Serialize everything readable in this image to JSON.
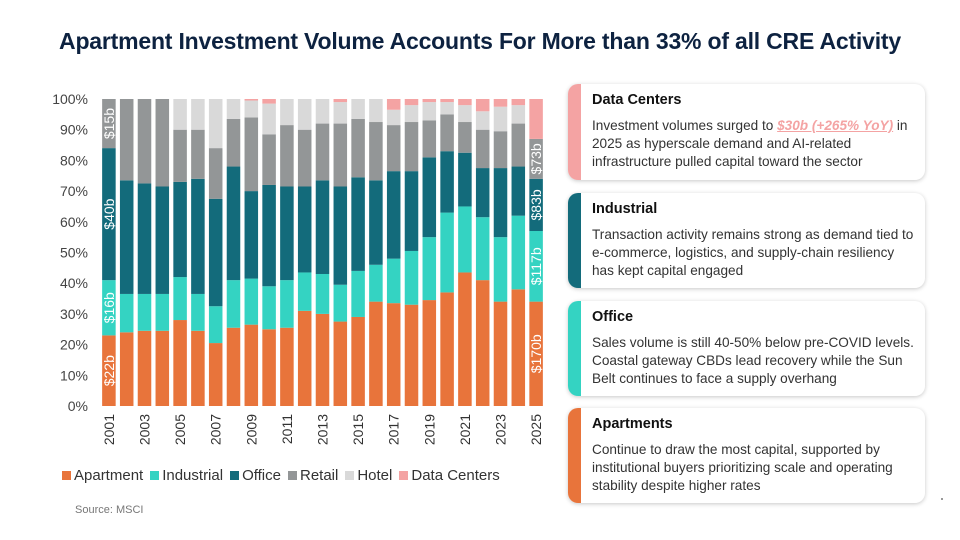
{
  "title": "Apartment Investment Volume Accounts For More than 33% of all CRE Activity",
  "source": "Source: MSCI",
  "colors": {
    "apartment": "#e8743b",
    "industrial": "#34d3c2",
    "office": "#136b7b",
    "retail": "#939697",
    "hotel": "#d9d9d9",
    "data_centers": "#f4a3a3"
  },
  "legend": [
    {
      "name": "Apartment",
      "color": "#e8743b"
    },
    {
      "name": "Industrial",
      "color": "#34d3c2"
    },
    {
      "name": "Office",
      "color": "#136b7b"
    },
    {
      "name": "Retail",
      "color": "#939697"
    },
    {
      "name": "Hotel",
      "color": "#d9d9d9"
    },
    {
      "name": "Data Centers",
      "color": "#f4a3a3"
    }
  ],
  "chart_data": {
    "type": "bar",
    "stacked": true,
    "percent": true,
    "categories": [
      "2001",
      "2002",
      "2003",
      "2004",
      "2005",
      "2006",
      "2007",
      "2008",
      "2009",
      "2010",
      "2011",
      "2012",
      "2013",
      "2014",
      "2015",
      "2016",
      "2017",
      "2018",
      "2019",
      "2020",
      "2021",
      "2022",
      "2023",
      "2024",
      "2025"
    ],
    "x_tick_labels": [
      "2001",
      "2003",
      "2005",
      "2007",
      "2009",
      "2011",
      "2013",
      "2015",
      "2017",
      "2019",
      "2021",
      "2023",
      "2025"
    ],
    "y_tick_labels": [
      "0%",
      "10%",
      "20%",
      "30%",
      "40%",
      "50%",
      "60%",
      "70%",
      "80%",
      "90%",
      "100%"
    ],
    "ylim": [
      0,
      100
    ],
    "series": [
      {
        "name": "Apartment",
        "values": [
          23,
          24,
          24.5,
          24.5,
          28,
          24.5,
          20.5,
          25.5,
          26.5,
          25,
          25.5,
          31,
          30,
          27.5,
          29,
          34,
          33.5,
          33,
          34.5,
          37,
          43.5,
          41,
          34,
          38,
          34
        ]
      },
      {
        "name": "Industrial",
        "values": [
          18,
          12.5,
          12,
          12,
          14,
          12,
          12,
          15.5,
          15,
          14,
          15.5,
          12.5,
          13,
          12,
          15,
          12,
          14.5,
          17.5,
          20.5,
          26,
          21.5,
          20.5,
          21,
          24,
          23
        ]
      },
      {
        "name": "Office",
        "values": [
          43,
          37,
          36,
          35,
          31,
          37.5,
          35,
          37,
          28.5,
          33,
          30.5,
          28,
          30.5,
          32,
          30.5,
          27.5,
          28.5,
          26,
          26,
          20,
          17.5,
          16,
          22.5,
          16,
          17
        ]
      },
      {
        "name": "Retail",
        "values": [
          16,
          26.5,
          27.5,
          28.5,
          17,
          16,
          16.5,
          15.5,
          24,
          16.5,
          20,
          18.5,
          18.5,
          20.5,
          19,
          19,
          15,
          16,
          12,
          12,
          10,
          12.5,
          12,
          14,
          13
        ]
      },
      {
        "name": "Hotel",
        "values": [
          0,
          0,
          0,
          0,
          10,
          10,
          16,
          6.5,
          5.5,
          10,
          8.5,
          10,
          8,
          7,
          6.5,
          7.5,
          5,
          5.5,
          6,
          4,
          5.5,
          6,
          8,
          6,
          0
        ]
      },
      {
        "name": "Data Centers",
        "values": [
          0,
          0,
          0,
          0,
          0,
          0,
          0,
          0,
          0.5,
          1.5,
          0,
          0,
          0,
          1,
          0,
          0,
          3.5,
          2,
          1,
          1,
          2,
          4,
          2.5,
          2,
          13
        ]
      }
    ],
    "bar_labels": [
      {
        "text": "$22b",
        "year": "2001",
        "y": 11.5
      },
      {
        "text": "$16b",
        "year": "2001",
        "y": 32
      },
      {
        "text": "$40b",
        "year": "2001",
        "y": 62.5
      },
      {
        "text": "$15b",
        "year": "2001",
        "y": 92
      },
      {
        "text": "$170b",
        "year": "2025",
        "y": 17
      },
      {
        "text": "$117b",
        "year": "2025",
        "y": 45.5
      },
      {
        "text": "$83b",
        "year": "2025",
        "y": 65.5
      },
      {
        "text": "$73b",
        "year": "2025",
        "y": 80.5
      }
    ]
  },
  "cards": [
    {
      "title": "Data Centers",
      "color": "#f4a3a3",
      "text_before": "Investment volumes surged to ",
      "highlight": "$30b (+265% YoY)",
      "text_after": " in 2025 as hyperscale demand and AI-related infrastructure pulled capital toward the sector"
    },
    {
      "title": "Industrial",
      "color": "#136b7b",
      "text": "Transaction activity remains strong as demand tied to e-commerce, logistics, and supply-chain resiliency has kept capital engaged"
    },
    {
      "title": "Office",
      "color": "#34d3c2",
      "text": "Sales volume is still 40-50% below pre-COVID levels. Coastal gateway CBDs lead recovery while the Sun Belt continues to face a supply overhang"
    },
    {
      "title": "Apartments",
      "color": "#e8743b",
      "text": "Continue to draw the most capital, supported by institutional buyers prioritizing scale and operating stability despite higher rates"
    }
  ]
}
